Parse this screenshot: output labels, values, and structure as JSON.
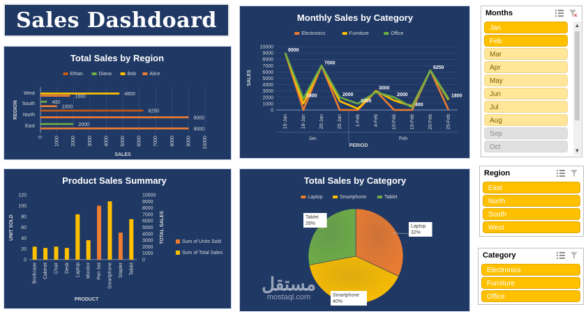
{
  "dashboard_title": "Sales Dashdoard",
  "watermark": {
    "arabic": "مستقل",
    "latin": "mostaql.com"
  },
  "colors": {
    "panel": "#1f3864",
    "electronics": "#ed7d31",
    "furniture": "#ffc000",
    "office": "#70ad47",
    "ethan": "#c55a11",
    "diana": "#70ad47",
    "bob": "#ffc000",
    "alice": "#ed7d31"
  },
  "chart_data": [
    {
      "id": "region",
      "type": "bar",
      "orientation": "horizontal",
      "title": "Total Sales by Region",
      "xlabel": "SALES",
      "ylabel": "REGION",
      "xlim": [
        0,
        10000
      ],
      "xticks": [
        "0",
        "1000",
        "2000",
        "3000",
        "4000",
        "5000",
        "6000",
        "7000",
        "8000",
        "9000",
        "10000"
      ],
      "categories": [
        "West",
        "South",
        "North",
        "East"
      ],
      "legend": [
        "Ethan",
        "Diana",
        "Bob",
        "Alice"
      ],
      "series": [
        {
          "name": "Ethan",
          "values": [
            0,
            0,
            6250,
            0
          ]
        },
        {
          "name": "Diana",
          "values": [
            0,
            400,
            0,
            2000
          ]
        },
        {
          "name": "Bob",
          "values": [
            4800,
            0,
            0,
            0
          ]
        },
        {
          "name": "Alice",
          "values": [
            1800,
            1000,
            9000,
            9000
          ]
        }
      ],
      "labels": [
        {
          "cat": "West",
          "series": "Alice",
          "text": "1800"
        },
        {
          "cat": "West",
          "series": "Bob",
          "text": "4800"
        },
        {
          "cat": "South",
          "series": "Alice",
          "text": "1000"
        },
        {
          "cat": "South",
          "series": "Diana",
          "text": "400"
        },
        {
          "cat": "North",
          "series": "Alice",
          "text": "9000"
        },
        {
          "cat": "North",
          "series": "Ethan",
          "text": "6250"
        },
        {
          "cat": "East",
          "series": "Diana",
          "text": "2000"
        },
        {
          "cat": "East",
          "series": "Alice",
          "text": "9000"
        }
      ]
    },
    {
      "id": "monthly",
      "type": "line",
      "title": "Monthly Sales by Category",
      "xlabel": "PERIOD",
      "ylabel": "SALES",
      "ylim": [
        0,
        10000
      ],
      "yticks": [
        "0",
        "1000",
        "2000",
        "3000",
        "4000",
        "5000",
        "6000",
        "7000",
        "8000",
        "9000",
        "10000"
      ],
      "x": [
        "15-Jan",
        "18-Jan",
        "20-Jan",
        "25-Jan",
        "1-Feb",
        "4-Feb",
        "10-Feb",
        "15-Feb",
        "20-Feb",
        "25-Feb"
      ],
      "groups": [
        {
          "name": "Jan",
          "from": 0,
          "to": 3
        },
        {
          "name": "Feb",
          "from": 4,
          "to": 9
        }
      ],
      "series": [
        {
          "name": "Electronics",
          "values": [
            9000,
            0,
            7000,
            0,
            0,
            3000,
            0,
            0,
            6250,
            0
          ]
        },
        {
          "name": "Furniture",
          "values": [
            9000,
            1000,
            7000,
            1400,
            200,
            3000,
            1500,
            600,
            6250,
            1600
          ]
        },
        {
          "name": "Office",
          "values": [
            9000,
            1800,
            7000,
            2000,
            1000,
            2800,
            2000,
            400,
            6250,
            1800
          ]
        }
      ],
      "labels": [
        {
          "i": 0,
          "value": 9000,
          "text": "9000"
        },
        {
          "i": 1,
          "value": 1800,
          "text": "1800"
        },
        {
          "i": 2,
          "value": 7000,
          "text": "7000"
        },
        {
          "i": 3,
          "value": 2000,
          "text": "2000"
        },
        {
          "i": 4,
          "value": 1000,
          "text": "1000"
        },
        {
          "i": 5,
          "value": 3000,
          "text": "3000"
        },
        {
          "i": 6,
          "value": 2000,
          "text": "2000"
        },
        {
          "i": 7,
          "value": 400,
          "text": "400"
        },
        {
          "i": 8,
          "value": 6250,
          "text": "6250"
        },
        {
          "i": 9,
          "value": 1800,
          "text": "1800"
        }
      ]
    },
    {
      "id": "product",
      "type": "bar",
      "title": "Product Sales Summary",
      "xlabel": "PRODUCT",
      "ylabel": "UNIT SOLD",
      "y2label": "TOTAL SALES",
      "ylim": [
        0,
        120
      ],
      "y2lim": [
        0,
        10000
      ],
      "yticks": [
        "0",
        "20",
        "40",
        "60",
        "80",
        "100",
        "120"
      ],
      "y2ticks": [
        "0",
        "1000",
        "2000",
        "3000",
        "4000",
        "5000",
        "6000",
        "7000",
        "8000",
        "9000",
        "10000"
      ],
      "categories": [
        "Bookcase",
        "Cabinet",
        "Chair",
        "Desk",
        "Laptop",
        "Monitor",
        "Pen Set",
        "Smartphone",
        "Stapler",
        "Tablet"
      ],
      "legend": [
        "Sum of Units Sold",
        "Sum of Total Sales"
      ],
      "series": [
        {
          "name": "Sum of Units Sold",
          "values": [
            0,
            0,
            0,
            0,
            0,
            0,
            100,
            0,
            50,
            0
          ]
        },
        {
          "name": "Sum of Total Sales",
          "values": [
            2000,
            1800,
            2000,
            1800,
            7000,
            3000,
            0,
            9000,
            800,
            6250
          ]
        }
      ]
    },
    {
      "id": "category",
      "type": "pie",
      "title": "Total Sales by Category",
      "legend": [
        "Laptop",
        "Smartphone",
        "Tablet"
      ],
      "slices": [
        {
          "name": "Laptop",
          "percent": 32,
          "label": "Laptop",
          "pct": "32%"
        },
        {
          "name": "Smartphone",
          "percent": 40,
          "label": "Smartphone",
          "pct": "40%"
        },
        {
          "name": "Tablet",
          "percent": 28,
          "label": "Tablet",
          "pct": "28%"
        }
      ]
    }
  ],
  "slicers": {
    "months": {
      "title": "Months",
      "items": [
        {
          "label": "Jan",
          "state": "selected"
        },
        {
          "label": "Feb",
          "state": "selected"
        },
        {
          "label": "Mar",
          "state": "nodata"
        },
        {
          "label": "Apr",
          "state": "nodata"
        },
        {
          "label": "May",
          "state": "nodata"
        },
        {
          "label": "Jun",
          "state": "nodata"
        },
        {
          "label": "Jul",
          "state": "nodata"
        },
        {
          "label": "Aug",
          "state": "nodata"
        },
        {
          "label": "Sep",
          "state": "empty"
        },
        {
          "label": "Oct",
          "state": "empty"
        }
      ]
    },
    "region": {
      "title": "Region",
      "items": [
        {
          "label": "East",
          "state": "selected"
        },
        {
          "label": "North",
          "state": "selected"
        },
        {
          "label": "South",
          "state": "selected"
        },
        {
          "label": "West",
          "state": "selected"
        }
      ]
    },
    "category": {
      "title": "Category",
      "items": [
        {
          "label": "Electronics",
          "state": "selected"
        },
        {
          "label": "Furniture",
          "state": "selected"
        },
        {
          "label": "Office",
          "state": "selected"
        }
      ]
    }
  }
}
